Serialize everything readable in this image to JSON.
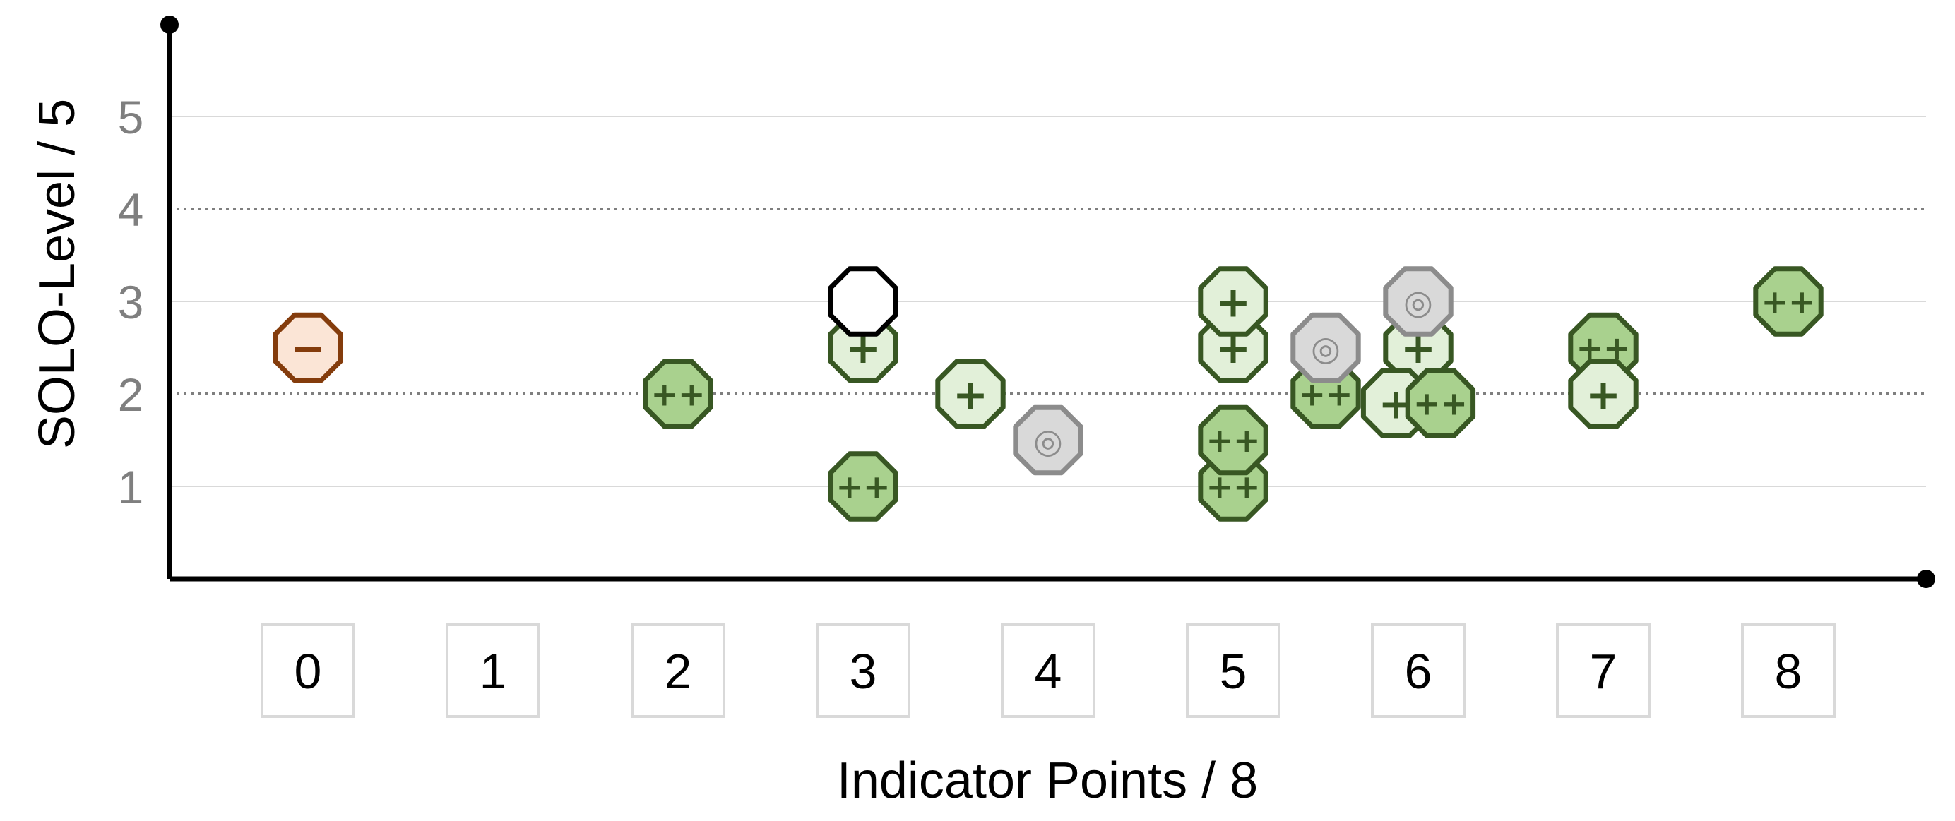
{
  "chart_data": {
    "type": "scatter",
    "title": "",
    "xlabel": "Indicator Points / 8",
    "ylabel": "SOLO-Level / 5",
    "x_ticks": [
      "0",
      "1",
      "2",
      "3",
      "4",
      "5",
      "6",
      "7",
      "8"
    ],
    "y_ticks": [
      "1",
      "2",
      "3",
      "4",
      "5"
    ],
    "xlim": [
      -0.75,
      8.75
    ],
    "ylim": [
      0,
      6
    ],
    "grid": "horizontal",
    "dotted_lines_y": [
      2,
      4
    ],
    "symbols": {
      "minus": "−",
      "plus": "+",
      "plusplus": "++",
      "neutral": "◎",
      "blank": ""
    },
    "styles": {
      "minus": {
        "fill": "#fbe5d6",
        "stroke": "#843c0c",
        "text": "#843c0c"
      },
      "plus": {
        "fill": "#e2f0d9",
        "stroke": "#385723",
        "text": "#385723"
      },
      "plusplus": {
        "fill": "#a9d18e",
        "stroke": "#385723",
        "text": "#385723"
      },
      "neutral": {
        "fill": "#d9d9d9",
        "stroke": "#8c8c8c",
        "text": "#8c8c8c"
      },
      "blank": {
        "fill": "#ffffff",
        "stroke": "#000000",
        "text": "#000000"
      }
    },
    "points": [
      {
        "x": 0,
        "y": 2.5,
        "kind": "minus"
      },
      {
        "x": 2,
        "y": 2,
        "kind": "plusplus"
      },
      {
        "x": 3,
        "y": 1,
        "kind": "plusplus"
      },
      {
        "x": 3,
        "y": 2.5,
        "kind": "plus"
      },
      {
        "x": 3,
        "y": 3,
        "kind": "blank"
      },
      {
        "x": 3.58,
        "y": 2,
        "kind": "plus"
      },
      {
        "x": 4,
        "y": 1.5,
        "kind": "neutral"
      },
      {
        "x": 5,
        "y": 1,
        "kind": "plusplus"
      },
      {
        "x": 5,
        "y": 1.5,
        "kind": "plusplus"
      },
      {
        "x": 5,
        "y": 2.5,
        "kind": "plus"
      },
      {
        "x": 5,
        "y": 3,
        "kind": "plus"
      },
      {
        "x": 5.5,
        "y": 2,
        "kind": "plusplus"
      },
      {
        "x": 5.5,
        "y": 2.5,
        "kind": "neutral"
      },
      {
        "x": 6,
        "y": 2.5,
        "kind": "plus"
      },
      {
        "x": 6,
        "y": 3,
        "kind": "neutral"
      },
      {
        "x": 5.88,
        "y": 1.9,
        "kind": "plus"
      },
      {
        "x": 6.12,
        "y": 1.9,
        "kind": "plusplus"
      },
      {
        "x": 7,
        "y": 2.5,
        "kind": "plusplus"
      },
      {
        "x": 7,
        "y": 2,
        "kind": "plus"
      },
      {
        "x": 8,
        "y": 3,
        "kind": "plusplus"
      }
    ]
  }
}
